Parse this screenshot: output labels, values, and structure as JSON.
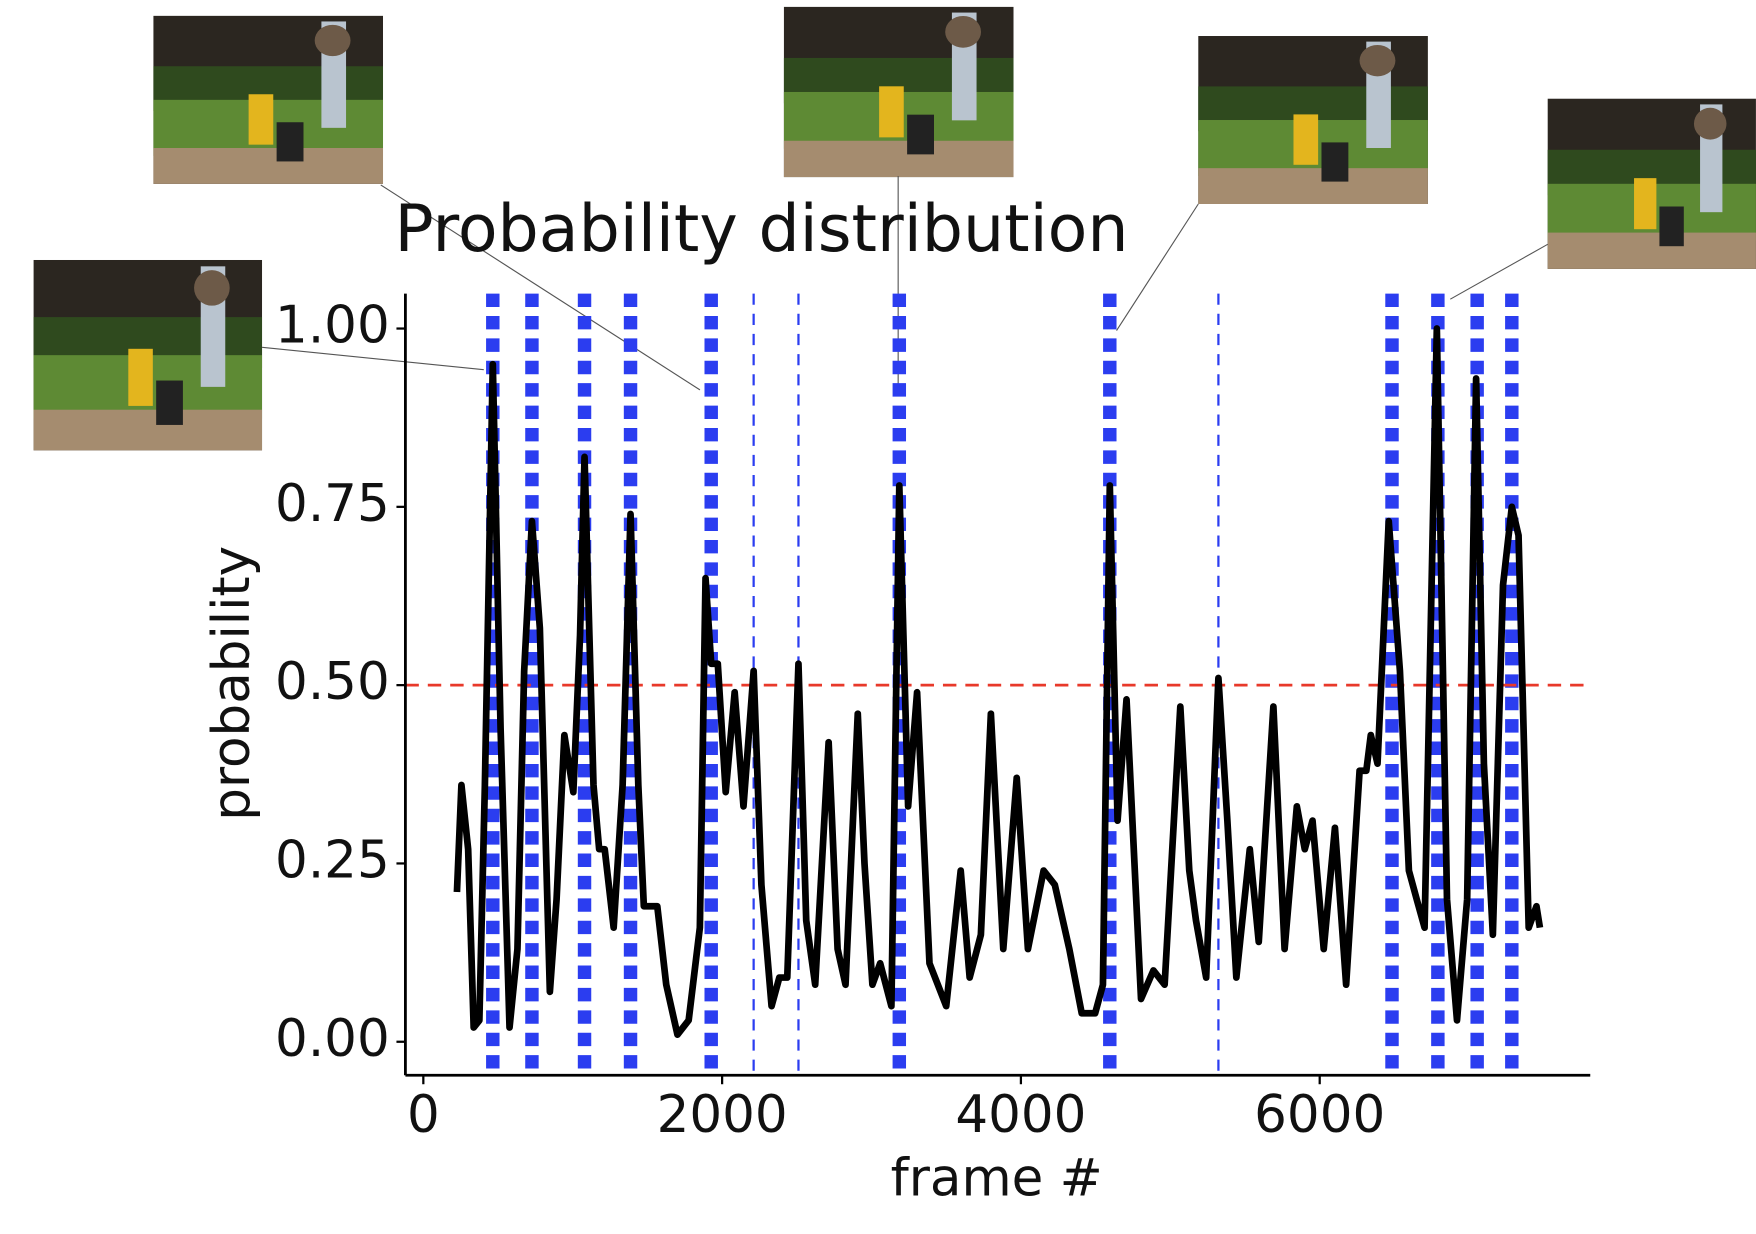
{
  "chart_data": {
    "type": "line",
    "title": "Probability distribution",
    "x_label": "frame #",
    "y_label": "probability",
    "x": [
      225,
      255,
      300,
      337,
      375,
      412,
      465,
      517,
      577,
      630,
      675,
      727,
      780,
      847,
      892,
      944,
      1004,
      1049,
      1079,
      1139,
      1177,
      1214,
      1274,
      1334,
      1387,
      1439,
      1476,
      1566,
      1626,
      1701,
      1776,
      1851,
      1889,
      1927,
      1971,
      2024,
      2084,
      2143,
      2211,
      2263,
      2331,
      2383,
      2436,
      2511,
      2563,
      2623,
      2713,
      2773,
      2826,
      2908,
      2953,
      3006,
      3058,
      3133,
      3186,
      3245,
      3305,
      3388,
      3500,
      3597,
      3657,
      3732,
      3799,
      3882,
      3972,
      4047,
      4152,
      4227,
      4324,
      4407,
      4497,
      4549,
      4595,
      4647,
      4707,
      4804,
      4887,
      4962,
      5067,
      5127,
      5172,
      5240,
      5322,
      5382,
      5442,
      5532,
      5592,
      5690,
      5765,
      5847,
      5900,
      5952,
      6027,
      6102,
      6177,
      6267,
      6312,
      6342,
      6387,
      6462,
      6537,
      6597,
      6649,
      6702,
      6784,
      6852,
      6919,
      6987,
      7047,
      7099,
      7159,
      7227,
      7286,
      7331,
      7399,
      7451,
      7474
    ],
    "series": [
      {
        "color": "#000000",
        "values": [
          0.21,
          0.36,
          0.27,
          0.02,
          0.03,
          0.36,
          0.95,
          0.44,
          0.02,
          0.13,
          0.52,
          0.73,
          0.58,
          0.07,
          0.2,
          0.43,
          0.35,
          0.57,
          0.82,
          0.36,
          0.27,
          0.27,
          0.16,
          0.36,
          0.74,
          0.36,
          0.19,
          0.19,
          0.08,
          0.01,
          0.03,
          0.16,
          0.65,
          0.53,
          0.53,
          0.35,
          0.49,
          0.33,
          0.52,
          0.22,
          0.05,
          0.09,
          0.09,
          0.53,
          0.17,
          0.08,
          0.42,
          0.13,
          0.08,
          0.46,
          0.25,
          0.08,
          0.11,
          0.05,
          0.78,
          0.33,
          0.49,
          0.11,
          0.05,
          0.24,
          0.09,
          0.15,
          0.46,
          0.13,
          0.37,
          0.13,
          0.24,
          0.22,
          0.13,
          0.04,
          0.04,
          0.08,
          0.78,
          0.31,
          0.48,
          0.06,
          0.1,
          0.08,
          0.47,
          0.24,
          0.17,
          0.09,
          0.51,
          0.31,
          0.09,
          0.27,
          0.14,
          0.47,
          0.13,
          0.33,
          0.27,
          0.31,
          0.13,
          0.3,
          0.08,
          0.38,
          0.38,
          0.43,
          0.39,
          0.73,
          0.52,
          0.24,
          0.2,
          0.16,
          1.0,
          0.2,
          0.03,
          0.2,
          0.93,
          0.39,
          0.15,
          0.64,
          0.75,
          0.71,
          0.16,
          0.19,
          0.16
        ]
      }
    ],
    "xlim": [
      -120,
      7811
    ],
    "xticks": [
      0,
      2000,
      4000,
      6000
    ],
    "ylim": [
      -0.047,
      1.049
    ],
    "yticks": [
      {
        "value": 0,
        "label": "0.00"
      },
      {
        "value": 0.25,
        "label": "0.25"
      },
      {
        "value": 0.5,
        "label": "0.50"
      },
      {
        "value": 0.75,
        "label": "0.75"
      },
      {
        "value": 1,
        "label": "1.00"
      }
    ],
    "vline_color": "#2b3df0",
    "vlines": [
      {
        "x": 465,
        "style": "thick"
      },
      {
        "x": 727,
        "style": "thick"
      },
      {
        "x": 1079,
        "style": "thick"
      },
      {
        "x": 1387,
        "style": "thick"
      },
      {
        "x": 1927,
        "style": "thick"
      },
      {
        "x": 2211,
        "style": "thin"
      },
      {
        "x": 2511,
        "style": "thin"
      },
      {
        "x": 3186,
        "style": "thick"
      },
      {
        "x": 4595,
        "style": "thick"
      },
      {
        "x": 5322,
        "style": "thin"
      },
      {
        "x": 6484,
        "style": "thick"
      },
      {
        "x": 6791,
        "style": "thick"
      },
      {
        "x": 7054,
        "style": "thick"
      },
      {
        "x": 7286,
        "style": "thick"
      }
    ],
    "hline": {
      "y": 0.5,
      "color": "#e8392a"
    }
  }
}
